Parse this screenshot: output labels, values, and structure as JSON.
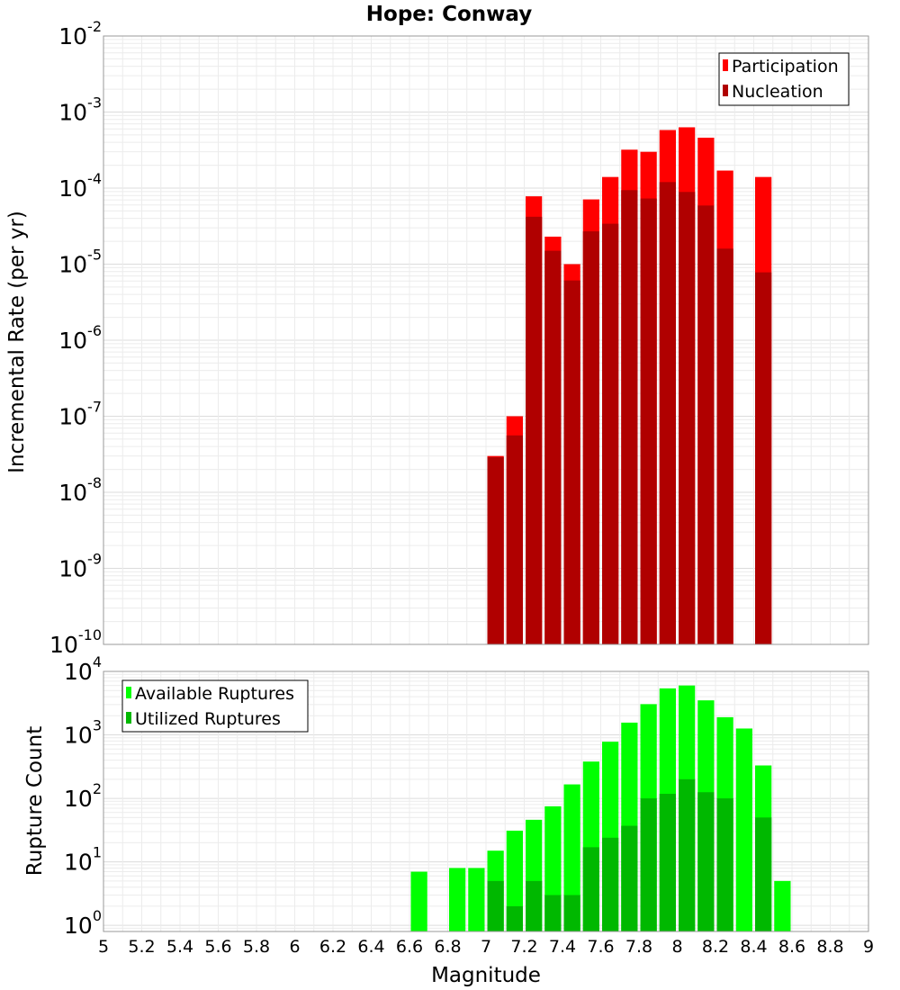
{
  "chart_data": [
    {
      "type": "bar",
      "title": "Hope: Conway",
      "xlabel": "Magnitude",
      "ylabel": "Incremental Rate (per yr)",
      "yscale": "log",
      "ylim": [
        1e-10,
        0.01
      ],
      "xlim": [
        5,
        9
      ],
      "grid": true,
      "legend_position": "top-right",
      "x": [
        7.05,
        7.15,
        7.25,
        7.35,
        7.45,
        7.55,
        7.65,
        7.75,
        7.85,
        7.95,
        8.05,
        8.15,
        8.25,
        8.45
      ],
      "series": [
        {
          "name": "Participation",
          "color": "#ff0000",
          "values": [
            3e-08,
            1e-07,
            7.8e-05,
            2.3e-05,
            1e-05,
            7.1e-05,
            0.00014,
            0.00032,
            0.0003,
            0.00058,
            0.00063,
            0.00046,
            0.00017,
            0.00014
          ]
        },
        {
          "name": "Nucleation",
          "color": "#b00000",
          "values": [
            2.9e-08,
            5.6e-08,
            4.2e-05,
            1.5e-05,
            6.1e-06,
            2.7e-05,
            3.4e-05,
            9.4e-05,
            7.3e-05,
            0.00012,
            8.9e-05,
            5.9e-05,
            1.6e-05,
            7.8e-06
          ]
        }
      ],
      "ytick_labels": [
        {
          "base": "10",
          "exp": "-10"
        },
        {
          "base": "10",
          "exp": "-9"
        },
        {
          "base": "10",
          "exp": "-8"
        },
        {
          "base": "10",
          "exp": "-7"
        },
        {
          "base": "10",
          "exp": "-6"
        },
        {
          "base": "10",
          "exp": "-5"
        },
        {
          "base": "10",
          "exp": "-4"
        },
        {
          "base": "10",
          "exp": "-3"
        },
        {
          "base": "10",
          "exp": "-2"
        }
      ]
    },
    {
      "type": "bar",
      "title": "",
      "xlabel": "Magnitude",
      "ylabel": "Rupture Count",
      "yscale": "log",
      "ylim": [
        0.8,
        10000
      ],
      "xlim": [
        5,
        9
      ],
      "grid": true,
      "legend_position": "top-left",
      "x": [
        6.65,
        6.85,
        6.95,
        7.05,
        7.15,
        7.25,
        7.35,
        7.45,
        7.55,
        7.65,
        7.75,
        7.85,
        7.95,
        8.05,
        8.15,
        8.25,
        8.35,
        8.45,
        8.55
      ],
      "series": [
        {
          "name": "Available Ruptures",
          "color": "#00ff00",
          "values": [
            7,
            8,
            8,
            15,
            31,
            46,
            75,
            166,
            380,
            780,
            1560,
            3050,
            5400,
            6000,
            3500,
            1900,
            1260,
            330,
            5
          ]
        },
        {
          "name": "Utilized Ruptures",
          "color": "#00b800",
          "values": [
            null,
            null,
            null,
            5,
            2,
            5,
            3,
            3,
            17,
            24,
            37,
            100,
            118,
            200,
            125,
            100,
            null,
            50,
            null
          ]
        }
      ],
      "ytick_labels": [
        {
          "base": "10",
          "exp": "0"
        },
        {
          "base": "10",
          "exp": "1"
        },
        {
          "base": "10",
          "exp": "2"
        },
        {
          "base": "10",
          "exp": "3"
        },
        {
          "base": "10",
          "exp": "4"
        }
      ],
      "xtick_labels": [
        "5",
        "5.2",
        "5.4",
        "5.6",
        "5.8",
        "6",
        "6.2",
        "6.4",
        "6.6",
        "6.8",
        "7",
        "7.2",
        "7.4",
        "7.6",
        "7.8",
        "8",
        "8.2",
        "8.4",
        "8.6",
        "8.8",
        "9"
      ]
    }
  ]
}
